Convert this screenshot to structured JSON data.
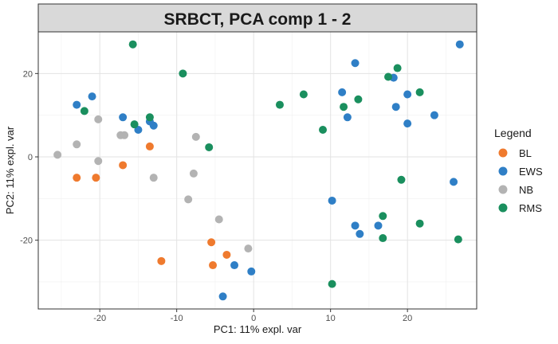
{
  "chart_data": {
    "type": "scatter",
    "title": "SRBCT, PCA comp 1 - 2",
    "xlabel": "PC1: 11% expl. var",
    "ylabel": "PC2: 11% expl. var",
    "xlim": [
      -28,
      29
    ],
    "ylim": [
      -36.5,
      30
    ],
    "x_ticks": [
      -20,
      -10,
      0,
      10,
      20
    ],
    "y_ticks": [
      -20,
      0,
      20
    ],
    "grid": true,
    "legend_title": "Legend",
    "legend_position": "right",
    "series": [
      {
        "name": "BL",
        "color": "#ef7a2e",
        "points": [
          [
            -23,
            -5
          ],
          [
            -20.5,
            -5
          ],
          [
            -17,
            -2
          ],
          [
            -13.5,
            2.5
          ],
          [
            -12,
            -25
          ],
          [
            -5.5,
            -20.5
          ],
          [
            -5.3,
            -26
          ],
          [
            -3.5,
            -23.5
          ]
        ]
      },
      {
        "name": "EWS",
        "color": "#2f7fc6",
        "points": [
          [
            -23,
            12.5
          ],
          [
            -21,
            14.5
          ],
          [
            -17,
            9.5
          ],
          [
            -15,
            6.5
          ],
          [
            -13.5,
            8.5
          ],
          [
            -13,
            7.5
          ],
          [
            -2.5,
            -26
          ],
          [
            -4,
            -33.5
          ],
          [
            -0.3,
            -27.5
          ],
          [
            10.2,
            -10.5
          ],
          [
            13.2,
            22.5
          ],
          [
            11.5,
            15.5
          ],
          [
            12.2,
            9.5
          ],
          [
            13.2,
            -16.5
          ],
          [
            13.8,
            -18.5
          ],
          [
            16.2,
            -16.5
          ],
          [
            18.2,
            19
          ],
          [
            18.5,
            12
          ],
          [
            20,
            15
          ],
          [
            20,
            8
          ],
          [
            23.5,
            10
          ],
          [
            26,
            -6
          ],
          [
            26.8,
            27
          ]
        ]
      },
      {
        "name": "NB",
        "color": "#b3b3b3",
        "points": [
          [
            -25.5,
            0.5
          ],
          [
            -23,
            3
          ],
          [
            -20.2,
            9
          ],
          [
            -20.2,
            -1
          ],
          [
            -17.3,
            5.2
          ],
          [
            -16.8,
            5.2
          ],
          [
            -13,
            -5
          ],
          [
            -8.5,
            -10.2
          ],
          [
            -7.8,
            -4
          ],
          [
            -7.5,
            4.8
          ],
          [
            -4.5,
            -15
          ],
          [
            -0.7,
            -22
          ]
        ]
      },
      {
        "name": "RMS",
        "color": "#1a8f5e",
        "points": [
          [
            -22,
            11
          ],
          [
            -15.7,
            27
          ],
          [
            -15.5,
            7.8
          ],
          [
            -13.5,
            9.5
          ],
          [
            -9.2,
            20
          ],
          [
            -5.8,
            2.3
          ],
          [
            3.4,
            12.5
          ],
          [
            6.5,
            15
          ],
          [
            9,
            6.5
          ],
          [
            10.2,
            -30.5
          ],
          [
            11.7,
            12
          ],
          [
            13.6,
            13.8
          ],
          [
            16.8,
            -14.2
          ],
          [
            16.8,
            -19.5
          ],
          [
            17.5,
            19.2
          ],
          [
            18.7,
            21.3
          ],
          [
            19.2,
            -5.5
          ],
          [
            21.6,
            15.5
          ],
          [
            21.6,
            -16
          ],
          [
            26.6,
            -19.8
          ]
        ]
      }
    ]
  }
}
